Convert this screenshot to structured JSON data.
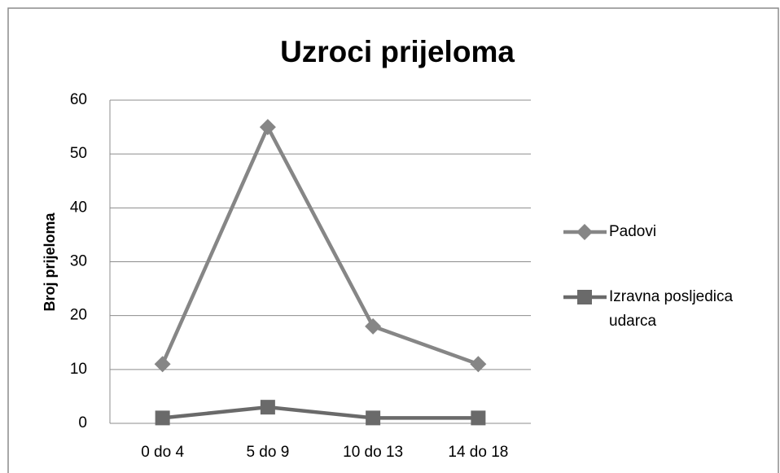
{
  "chart_data": {
    "type": "line",
    "title": "Uzroci prijeloma",
    "ylabel": "Broj prijeloma",
    "categories": [
      "0 do 4",
      "5 do 9",
      "10 do 13",
      "14 do 18"
    ],
    "series": [
      {
        "name": "Padovi",
        "color": "#868686",
        "marker": "diamond",
        "values": [
          11,
          55,
          18,
          11
        ]
      },
      {
        "name": "Izravna posljedica udarca",
        "color": "#6a6a6a",
        "marker": "square",
        "values": [
          1,
          3,
          1,
          1
        ]
      }
    ],
    "ylim": [
      0,
      60
    ],
    "yticks": [
      0,
      10,
      20,
      30,
      40,
      50,
      60
    ],
    "grid": true,
    "legend": "right"
  }
}
